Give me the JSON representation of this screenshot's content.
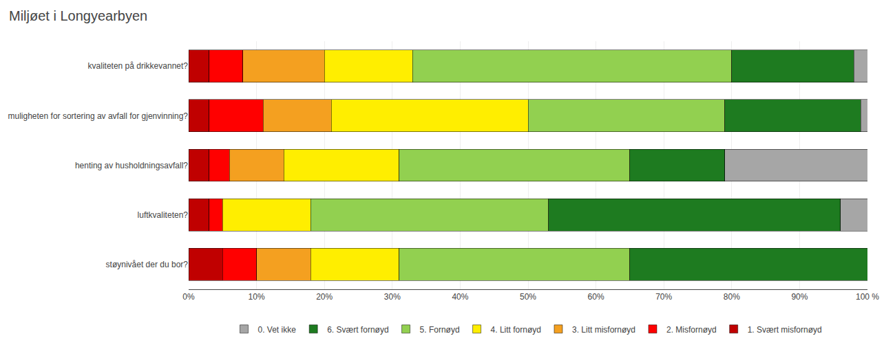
{
  "chart_data": {
    "type": "bar",
    "orientation": "horizontal",
    "stacked": true,
    "title": "Miljøet i Longyearbyen",
    "categories": [
      "kvaliteten på drikkevannet?",
      "muligheten for sortering av avfall for gjenvinning?",
      "henting av husholdningsavfall?",
      "luftkvaliteten?",
      "støynivået der du bor?"
    ],
    "series": [
      {
        "name": "1. Svært misfornøyd",
        "color": "#c00000",
        "values": [
          3,
          3,
          3,
          3,
          5
        ]
      },
      {
        "name": "2. Misfornøyd",
        "color": "#ff0000",
        "values": [
          5,
          8,
          3,
          2,
          5
        ]
      },
      {
        "name": "3. Litt misfornøyd",
        "color": "#f4a020",
        "values": [
          12,
          10,
          8,
          0,
          8
        ]
      },
      {
        "name": "4. Litt fornøyd",
        "color": "#ffee00",
        "values": [
          13,
          29,
          17,
          13,
          13
        ]
      },
      {
        "name": "5. Fornøyd",
        "color": "#92d050",
        "values": [
          47,
          29,
          34,
          35,
          34
        ]
      },
      {
        "name": "6. Svært fornøyd",
        "color": "#1e7b20",
        "values": [
          18,
          20,
          14,
          43,
          35
        ]
      },
      {
        "name": "0. Vet ikke",
        "color": "#a6a6a6",
        "values": [
          2,
          1,
          21,
          4,
          0
        ]
      }
    ],
    "xlim": [
      0,
      100
    ],
    "xticks": [
      {
        "value": 0,
        "label": "0%"
      },
      {
        "value": 10,
        "label": "10%"
      },
      {
        "value": 20,
        "label": "20%"
      },
      {
        "value": 30,
        "label": "30%"
      },
      {
        "value": 40,
        "label": "40%"
      },
      {
        "value": 50,
        "label": "50%"
      },
      {
        "value": 60,
        "label": "60%"
      },
      {
        "value": 70,
        "label": "70%"
      },
      {
        "value": 80,
        "label": "80%"
      },
      {
        "value": 90,
        "label": "90%"
      },
      {
        "value": 100,
        "label": "100 %"
      }
    ],
    "grid": true,
    "legend": "bottom"
  }
}
